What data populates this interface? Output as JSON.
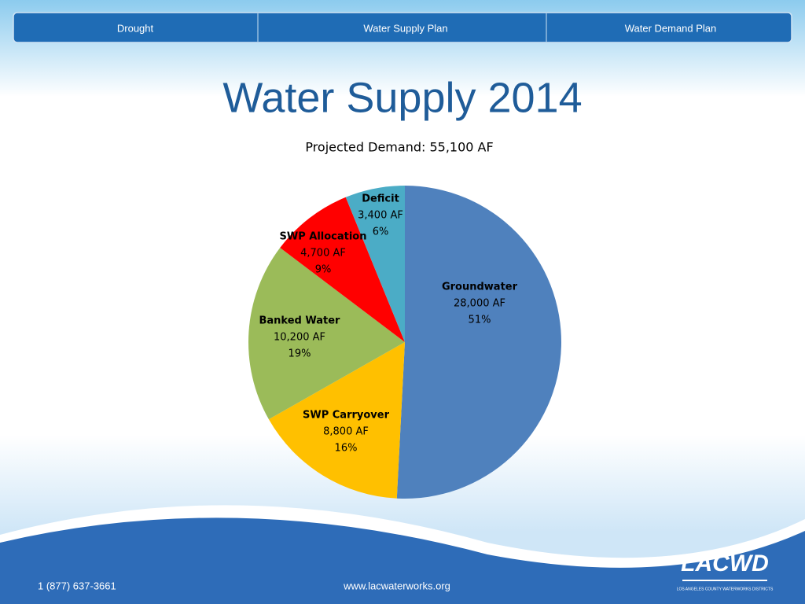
{
  "nav": [
    "Drought",
    "Water Supply Plan",
    "Water Demand Plan"
  ],
  "title": "Water Supply 2014",
  "chart_data": {
    "type": "pie",
    "title": "Projected Demand: 55,100 AF",
    "categories": [
      "Groundwater",
      "SWP Carryover",
      "Banked Water",
      "SWP Allocation",
      "Deficit"
    ],
    "values": [
      28000,
      8800,
      10200,
      4700,
      3400
    ],
    "value_labels": [
      "28,000 AF",
      "8,800 AF",
      "10,200 AF",
      "4,700 AF",
      "3,400 AF"
    ],
    "percents": [
      51,
      16,
      19,
      9,
      6
    ],
    "percent_labels": [
      "51%",
      "16%",
      "19%",
      "9%",
      "6%"
    ],
    "colors": [
      "#4f81bd",
      "#ffc000",
      "#9bbb59",
      "#ff0000",
      "#4bacc6"
    ]
  },
  "footer": {
    "phone": "1 (877) 637-3661",
    "website": "www.lacwaterworks.org",
    "logo": "LACWD",
    "logo_subtitle": "LOS ANGELES COUNTY WATERWORKS DISTRICTS"
  }
}
